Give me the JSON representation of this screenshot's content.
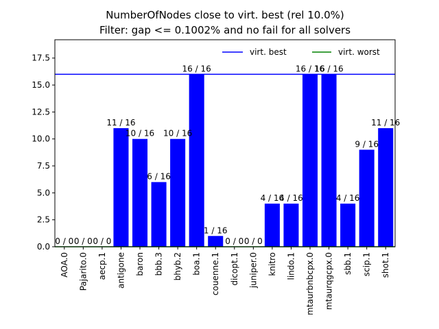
{
  "chart_data": {
    "type": "bar",
    "title": "NumberOfNodes close to virt. best (rel 10.0%)",
    "subtitle": "Filter: gap <= 0.1002% and no fail for all solvers",
    "xlabel": "",
    "ylabel": "",
    "categories": [
      "AOA.0",
      "Pajarito.0",
      "aecp.1",
      "antigone",
      "baron",
      "bbb.3",
      "bhyb.2",
      "boa.1",
      "couenne.1",
      "dicopt.1",
      "juniper.0",
      "knitro",
      "lindo.1",
      "mtaurbnbcpx.0",
      "mtaurqgcpx.0",
      "sbb.1",
      "scip.1",
      "shot.1"
    ],
    "values": [
      0,
      0,
      0,
      11,
      10,
      6,
      10,
      16,
      1,
      0,
      0,
      4,
      4,
      16,
      16,
      4,
      9,
      11
    ],
    "bar_labels": [
      "0 / 0",
      "0 / 0",
      "0 / 0",
      "11 / 16",
      "10 / 16",
      "6 / 16",
      "10 / 16",
      "16 / 16",
      "1 / 16",
      "0 / 0",
      "0 / 0",
      "4 / 16",
      "4 / 16",
      "16 / 16",
      "16 / 16",
      "4 / 16",
      "9 / 16",
      "11 / 16"
    ],
    "ylim": [
      0,
      19.2
    ],
    "yticks": [
      0.0,
      2.5,
      5.0,
      7.5,
      10.0,
      12.5,
      15.0,
      17.5
    ],
    "ytick_labels": [
      "0.0",
      "2.5",
      "5.0",
      "7.5",
      "10.0",
      "12.5",
      "15.0",
      "17.5"
    ],
    "reference_lines": [
      {
        "name": "virt. best",
        "value": 16,
        "color": "#0000ff"
      },
      {
        "name": "virt. worst",
        "value": 0,
        "color": "#008000"
      }
    ],
    "bar_color": "#0000ff",
    "grid": false,
    "legend_position": "top-right"
  }
}
